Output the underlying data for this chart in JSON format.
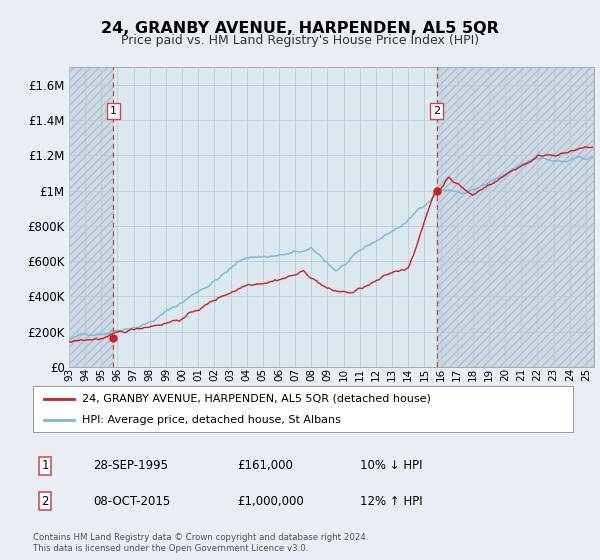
{
  "title": "24, GRANBY AVENUE, HARPENDEN, AL5 5QR",
  "subtitle": "Price paid vs. HM Land Registry's House Price Index (HPI)",
  "background_color": "#e8eef4",
  "plot_bg_color": "#dce8f0",
  "hatch_bg_color": "#ccd8e4",
  "grid_color": "#b8ccd8",
  "title_fontsize": 11.5,
  "subtitle_fontsize": 9,
  "hpi_color": "#7ab8d8",
  "price_color": "#cc2222",
  "marker_color": "#cc2222",
  "sale1_year": 1995.75,
  "sale1_value": 161000,
  "sale2_year": 2015.77,
  "sale2_value": 1000000,
  "vline_color": "#cc4444",
  "ylim": [
    0,
    1700000
  ],
  "xlim_start": 1993.0,
  "xlim_end": 2025.5,
  "yticks": [
    0,
    200000,
    400000,
    600000,
    800000,
    1000000,
    1200000,
    1400000,
    1600000
  ],
  "ytick_labels": [
    "£0",
    "£200K",
    "£400K",
    "£600K",
    "£800K",
    "£1M",
    "£1.2M",
    "£1.4M",
    "£1.6M"
  ],
  "legend_label1": "24, GRANBY AVENUE, HARPENDEN, AL5 5QR (detached house)",
  "legend_label2": "HPI: Average price, detached house, St Albans",
  "note1_label": "1",
  "note1_date": "28-SEP-1995",
  "note1_price": "£161,000",
  "note1_hpi": "10% ↓ HPI",
  "note2_label": "2",
  "note2_date": "08-OCT-2015",
  "note2_price": "£1,000,000",
  "note2_hpi": "12% ↑ HPI",
  "footer": "Contains HM Land Registry data © Crown copyright and database right 2024.\nThis data is licensed under the Open Government Licence v3.0."
}
